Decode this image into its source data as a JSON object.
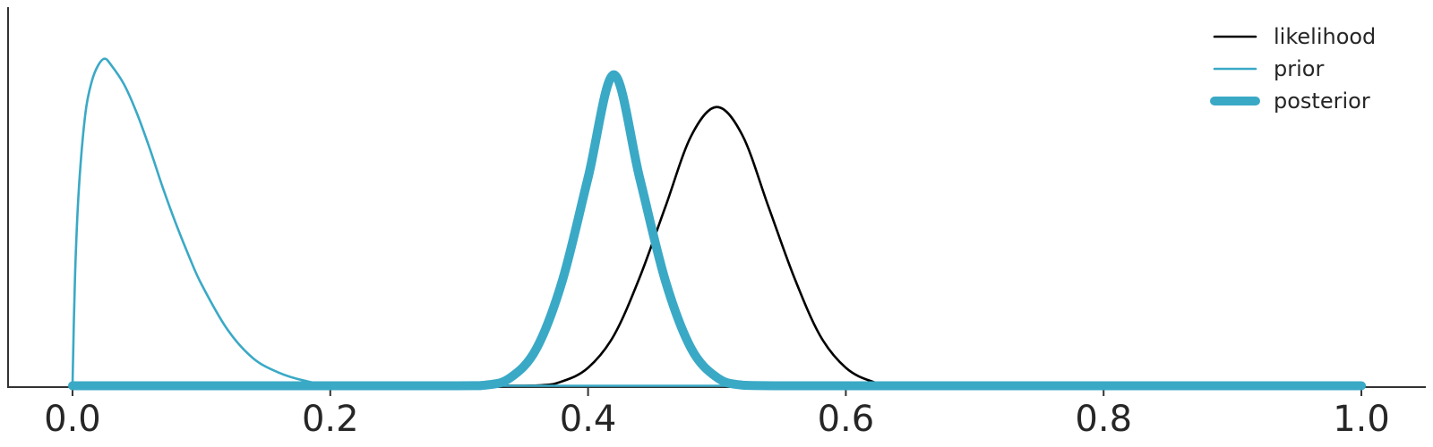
{
  "chart_data": {
    "type": "line",
    "title": "",
    "xlabel": "",
    "ylabel": "",
    "xlim": [
      -0.05,
      1.05
    ],
    "ylim": [
      0,
      1.18
    ],
    "grid": false,
    "legend_position": "top-right",
    "xticks": [
      0.0,
      0.2,
      0.4,
      0.6,
      0.8,
      1.0
    ],
    "xtick_labels": [
      "0.0",
      "0.2",
      "0.4",
      "0.6",
      "0.8",
      "1.0"
    ],
    "series": [
      {
        "name": "likelihood",
        "color": "#000000",
        "x": [
          0.0,
          0.3,
          0.36,
          0.38,
          0.4,
          0.42,
          0.44,
          0.46,
          0.48,
          0.5,
          0.52,
          0.54,
          0.56,
          0.58,
          0.6,
          0.62,
          0.64,
          0.7,
          1.0
        ],
        "y": [
          0.0,
          0.0,
          0.005,
          0.018,
          0.06,
          0.16,
          0.34,
          0.56,
          0.78,
          0.87,
          0.78,
          0.56,
          0.34,
          0.16,
          0.06,
          0.018,
          0.005,
          0.0,
          0.0
        ]
      },
      {
        "name": "prior",
        "color": "#3aa9c6",
        "x": [
          0.0,
          0.002,
          0.005,
          0.01,
          0.015,
          0.02,
          0.025,
          0.03,
          0.04,
          0.05,
          0.06,
          0.07,
          0.08,
          0.09,
          0.1,
          0.12,
          0.14,
          0.16,
          0.18,
          0.2,
          0.25,
          1.0
        ],
        "y": [
          0.0,
          0.35,
          0.62,
          0.85,
          0.95,
          1.0,
          1.02,
          1.0,
          0.94,
          0.85,
          0.74,
          0.62,
          0.51,
          0.41,
          0.32,
          0.18,
          0.09,
          0.045,
          0.02,
          0.008,
          0.0,
          0.0
        ]
      },
      {
        "name": "posterior",
        "color": "#3aa9c6",
        "x": [
          0.0,
          0.28,
          0.32,
          0.34,
          0.36,
          0.38,
          0.4,
          0.42,
          0.44,
          0.46,
          0.48,
          0.5,
          0.52,
          0.56,
          0.6,
          1.0
        ],
        "y": [
          0.0,
          0.0,
          0.006,
          0.03,
          0.12,
          0.33,
          0.65,
          0.97,
          0.65,
          0.33,
          0.12,
          0.03,
          0.006,
          0.0,
          0.0,
          0.0
        ]
      }
    ],
    "legend": [
      {
        "label": "likelihood",
        "color": "#000000",
        "thickness": "thin"
      },
      {
        "label": "prior",
        "color": "#3aa9c6",
        "thickness": "thin"
      },
      {
        "label": "posterior",
        "color": "#3aa9c6",
        "thickness": "thick"
      }
    ]
  }
}
